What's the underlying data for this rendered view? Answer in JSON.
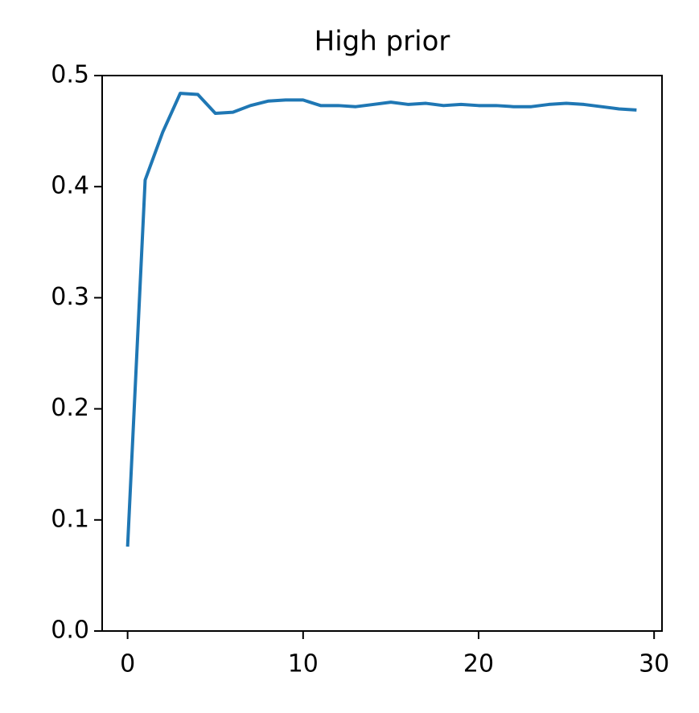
{
  "chart_data": {
    "type": "line",
    "title": "High prior",
    "x": [
      0,
      1,
      2,
      3,
      4,
      5,
      6,
      7,
      8,
      9,
      10,
      11,
      12,
      13,
      14,
      15,
      16,
      17,
      18,
      19,
      20,
      21,
      22,
      23,
      24,
      25,
      26,
      27,
      28,
      29
    ],
    "series": [
      {
        "color": "#1f77b4",
        "values": [
          0.076,
          0.406,
          0.449,
          0.484,
          0.483,
          0.466,
          0.467,
          0.473,
          0.477,
          0.478,
          0.478,
          0.473,
          0.473,
          0.472,
          0.474,
          0.476,
          0.474,
          0.475,
          0.473,
          0.474,
          0.473,
          0.473,
          0.472,
          0.472,
          0.474,
          0.475,
          0.474,
          0.472,
          0.47,
          0.469
        ]
      }
    ],
    "xlim": [
      -1.45,
      30.45
    ],
    "ylim": [
      0,
      0.5
    ],
    "xticks": [
      0,
      10,
      20,
      30
    ],
    "yticks": [
      {
        "value": 0,
        "label": "0.0"
      },
      0.1,
      0.2,
      0.3,
      0.4,
      0.5
    ],
    "grid": false
  }
}
